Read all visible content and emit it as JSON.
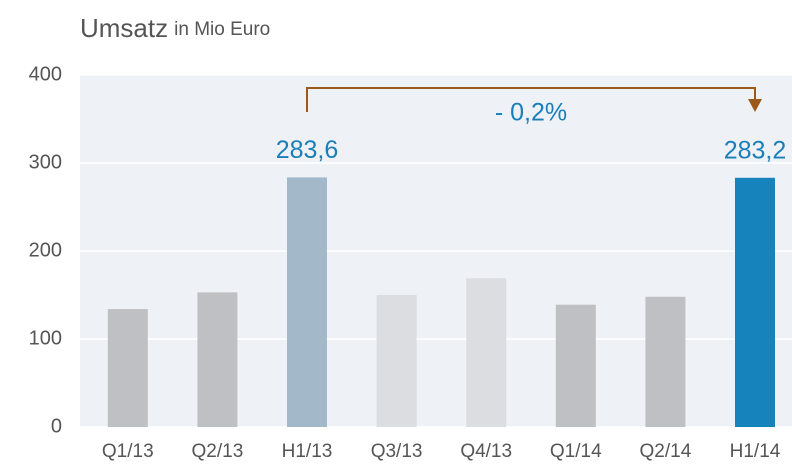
{
  "chart_data": {
    "type": "bar",
    "title": "Umsatz",
    "subtitle": "in Mio Euro",
    "categories": [
      "Q1/13",
      "Q2/13",
      "H1/13",
      "Q3/13",
      "Q4/13",
      "Q1/14",
      "Q2/14",
      "H1/14"
    ],
    "values": [
      134,
      153,
      283.6,
      150,
      169,
      139,
      148,
      283.2
    ],
    "value_labels": [
      null,
      null,
      "283,6",
      null,
      null,
      null,
      null,
      "283,2"
    ],
    "colors": [
      "#bec0c3",
      "#bec0c3",
      "#a3b8c8",
      "#dcdde0",
      "#dcdde0",
      "#bec0c3",
      "#bec0c3",
      "#1683bd"
    ],
    "ylim": [
      0,
      400
    ],
    "yticks": [
      0,
      100,
      200,
      300,
      400
    ],
    "grid": true,
    "annotations": [
      "- 0,2%"
    ]
  }
}
